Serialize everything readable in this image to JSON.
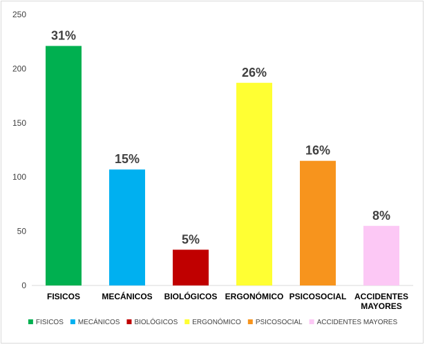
{
  "chart_data": {
    "type": "bar",
    "categories": [
      "FISICOS",
      "MECÁNICOS",
      "BIOLÓGICOS",
      "ERGONÓMICO",
      "PSICOSOCIAL",
      "ACCIDENTES MAYORES"
    ],
    "category_display": [
      [
        "FISICOS"
      ],
      [
        "MECÁNICOS"
      ],
      [
        "BIOLÓGICOS"
      ],
      [
        "ERGONÓMICO"
      ],
      [
        "PSICOSOCIAL"
      ],
      [
        "ACCIDENTES",
        "MAYORES"
      ]
    ],
    "values": [
      221,
      107,
      33,
      187,
      115,
      55
    ],
    "data_labels": [
      "31%",
      "15%",
      "5%",
      "26%",
      "16%",
      "8%"
    ],
    "colors": [
      "#00b050",
      "#00b0f0",
      "#c00000",
      "#ffff33",
      "#f7941d",
      "#fcc8f5"
    ],
    "ylim": [
      0,
      250
    ],
    "yticks": [
      0,
      50,
      100,
      150,
      200,
      250
    ],
    "grid": false,
    "legend": {
      "position": "bottom",
      "entries": [
        "FISICOS",
        "MECÁNICOS",
        "BIOLÓGICOS",
        "ERGONÓMICO",
        "PSICOSOCIAL",
        "ACCIDENTES MAYORES"
      ]
    },
    "title": "",
    "xlabel": "",
    "ylabel": ""
  }
}
